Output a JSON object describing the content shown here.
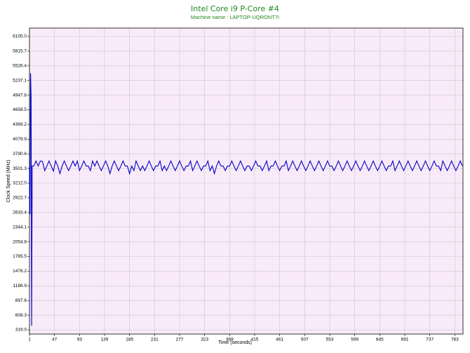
{
  "chart_data": {
    "type": "line",
    "title": "Intel Core i9 P-Core #4",
    "subtitle": "Machine name : LAPTOP-UQRONT7I",
    "x_label": "Time (seconds)",
    "y_label": "Clock Speed (MHz)",
    "xlim": [
      1,
      798
    ],
    "ylim": [
      236,
      6271
    ],
    "xticks": [
      1,
      47,
      93,
      139,
      185,
      231,
      277,
      323,
      369,
      415,
      461,
      507,
      553,
      599,
      645,
      691,
      737,
      783
    ],
    "yticks": [
      {
        "value": 319,
        "label": "319.0"
      },
      608.3,
      897.6,
      1186.9,
      1476.2,
      1765.5,
      2054.8,
      2344.1,
      2633.4,
      2922.7,
      {
        "value": 3212,
        "label": "3212.0"
      },
      3501.3,
      3790.6,
      4079.9,
      4369.2,
      4658.5,
      4947.8,
      5237.1,
      5526.4,
      5815.7,
      {
        "value": 6105,
        "label": "6105.0"
      }
    ],
    "grid": true,
    "background": "#f9eaf9",
    "series": [
      {
        "color": "#0000c8",
        "x": [
          1,
          2,
          3,
          4,
          5,
          6,
          9,
          13,
          17,
          21,
          25,
          29,
          33,
          37,
          41,
          45,
          49,
          53,
          57,
          61,
          65,
          69,
          73,
          77,
          81,
          85,
          89,
          93,
          97,
          101,
          105,
          109,
          113,
          117,
          121,
          125,
          129,
          133,
          137,
          141,
          145,
          149,
          153,
          157,
          161,
          165,
          169,
          173,
          177,
          181,
          185,
          189,
          193,
          197,
          201,
          205,
          209,
          213,
          217,
          221,
          225,
          229,
          233,
          237,
          241,
          245,
          249,
          253,
          257,
          261,
          265,
          269,
          273,
          277,
          281,
          285,
          289,
          293,
          297,
          301,
          305,
          309,
          313,
          317,
          321,
          325,
          329,
          333,
          337,
          341,
          345,
          349,
          353,
          357,
          361,
          365,
          369,
          373,
          377,
          381,
          385,
          389,
          393,
          397,
          401,
          405,
          409,
          413,
          417,
          421,
          425,
          429,
          433,
          437,
          441,
          445,
          449,
          453,
          457,
          461,
          465,
          469,
          473,
          477,
          481,
          485,
          489,
          493,
          497,
          501,
          505,
          509,
          513,
          517,
          521,
          525,
          529,
          533,
          537,
          541,
          545,
          549,
          553,
          557,
          561,
          565,
          569,
          573,
          577,
          581,
          585,
          589,
          593,
          597,
          601,
          605,
          609,
          613,
          617,
          621,
          625,
          629,
          633,
          637,
          641,
          645,
          649,
          653,
          657,
          661,
          665,
          669,
          673,
          677,
          681,
          685,
          689,
          693,
          697,
          701,
          705,
          709,
          713,
          717,
          721,
          725,
          729,
          733,
          737,
          741,
          745,
          749,
          753,
          757,
          761,
          765,
          769,
          773,
          777,
          781,
          785,
          789,
          793,
          797
        ],
        "values": [
          3550,
          2600,
          5380,
          4900,
          400,
          3550,
          3550,
          3650,
          3550,
          3650,
          3640,
          3460,
          3550,
          3650,
          3550,
          3450,
          3650,
          3550,
          3400,
          3550,
          3650,
          3550,
          3460,
          3550,
          3650,
          3550,
          3650,
          3460,
          3550,
          3650,
          3550,
          3550,
          3460,
          3650,
          3550,
          3650,
          3550,
          3460,
          3550,
          3650,
          3550,
          3400,
          3550,
          3650,
          3550,
          3460,
          3550,
          3650,
          3550,
          3550,
          3400,
          3550,
          3460,
          3650,
          3550,
          3460,
          3550,
          3460,
          3550,
          3650,
          3550,
          3460,
          3550,
          3550,
          3650,
          3460,
          3550,
          3460,
          3550,
          3650,
          3550,
          3460,
          3550,
          3650,
          3550,
          3460,
          3550,
          3550,
          3650,
          3460,
          3550,
          3650,
          3550,
          3460,
          3550,
          3550,
          3650,
          3460,
          3550,
          3400,
          3550,
          3650,
          3550,
          3550,
          3460,
          3550,
          3550,
          3650,
          3550,
          3460,
          3550,
          3650,
          3550,
          3460,
          3550,
          3550,
          3460,
          3550,
          3650,
          3550,
          3550,
          3460,
          3550,
          3650,
          3460,
          3550,
          3550,
          3650,
          3550,
          3460,
          3550,
          3550,
          3650,
          3460,
          3550,
          3650,
          3550,
          3460,
          3550,
          3650,
          3550,
          3460,
          3550,
          3650,
          3550,
          3460,
          3550,
          3650,
          3550,
          3460,
          3550,
          3650,
          3550,
          3550,
          3460,
          3550,
          3650,
          3550,
          3460,
          3550,
          3650,
          3550,
          3460,
          3550,
          3650,
          3550,
          3460,
          3550,
          3650,
          3550,
          3460,
          3550,
          3650,
          3550,
          3460,
          3550,
          3650,
          3550,
          3460,
          3550,
          3550,
          3650,
          3460,
          3550,
          3650,
          3550,
          3460,
          3550,
          3650,
          3550,
          3460,
          3550,
          3650,
          3550,
          3460,
          3550,
          3650,
          3550,
          3460,
          3550,
          3650,
          3550,
          3550,
          3460,
          3650,
          3550,
          3460,
          3550,
          3650,
          3550,
          3460,
          3550,
          3650,
          3550
        ]
      }
    ]
  }
}
